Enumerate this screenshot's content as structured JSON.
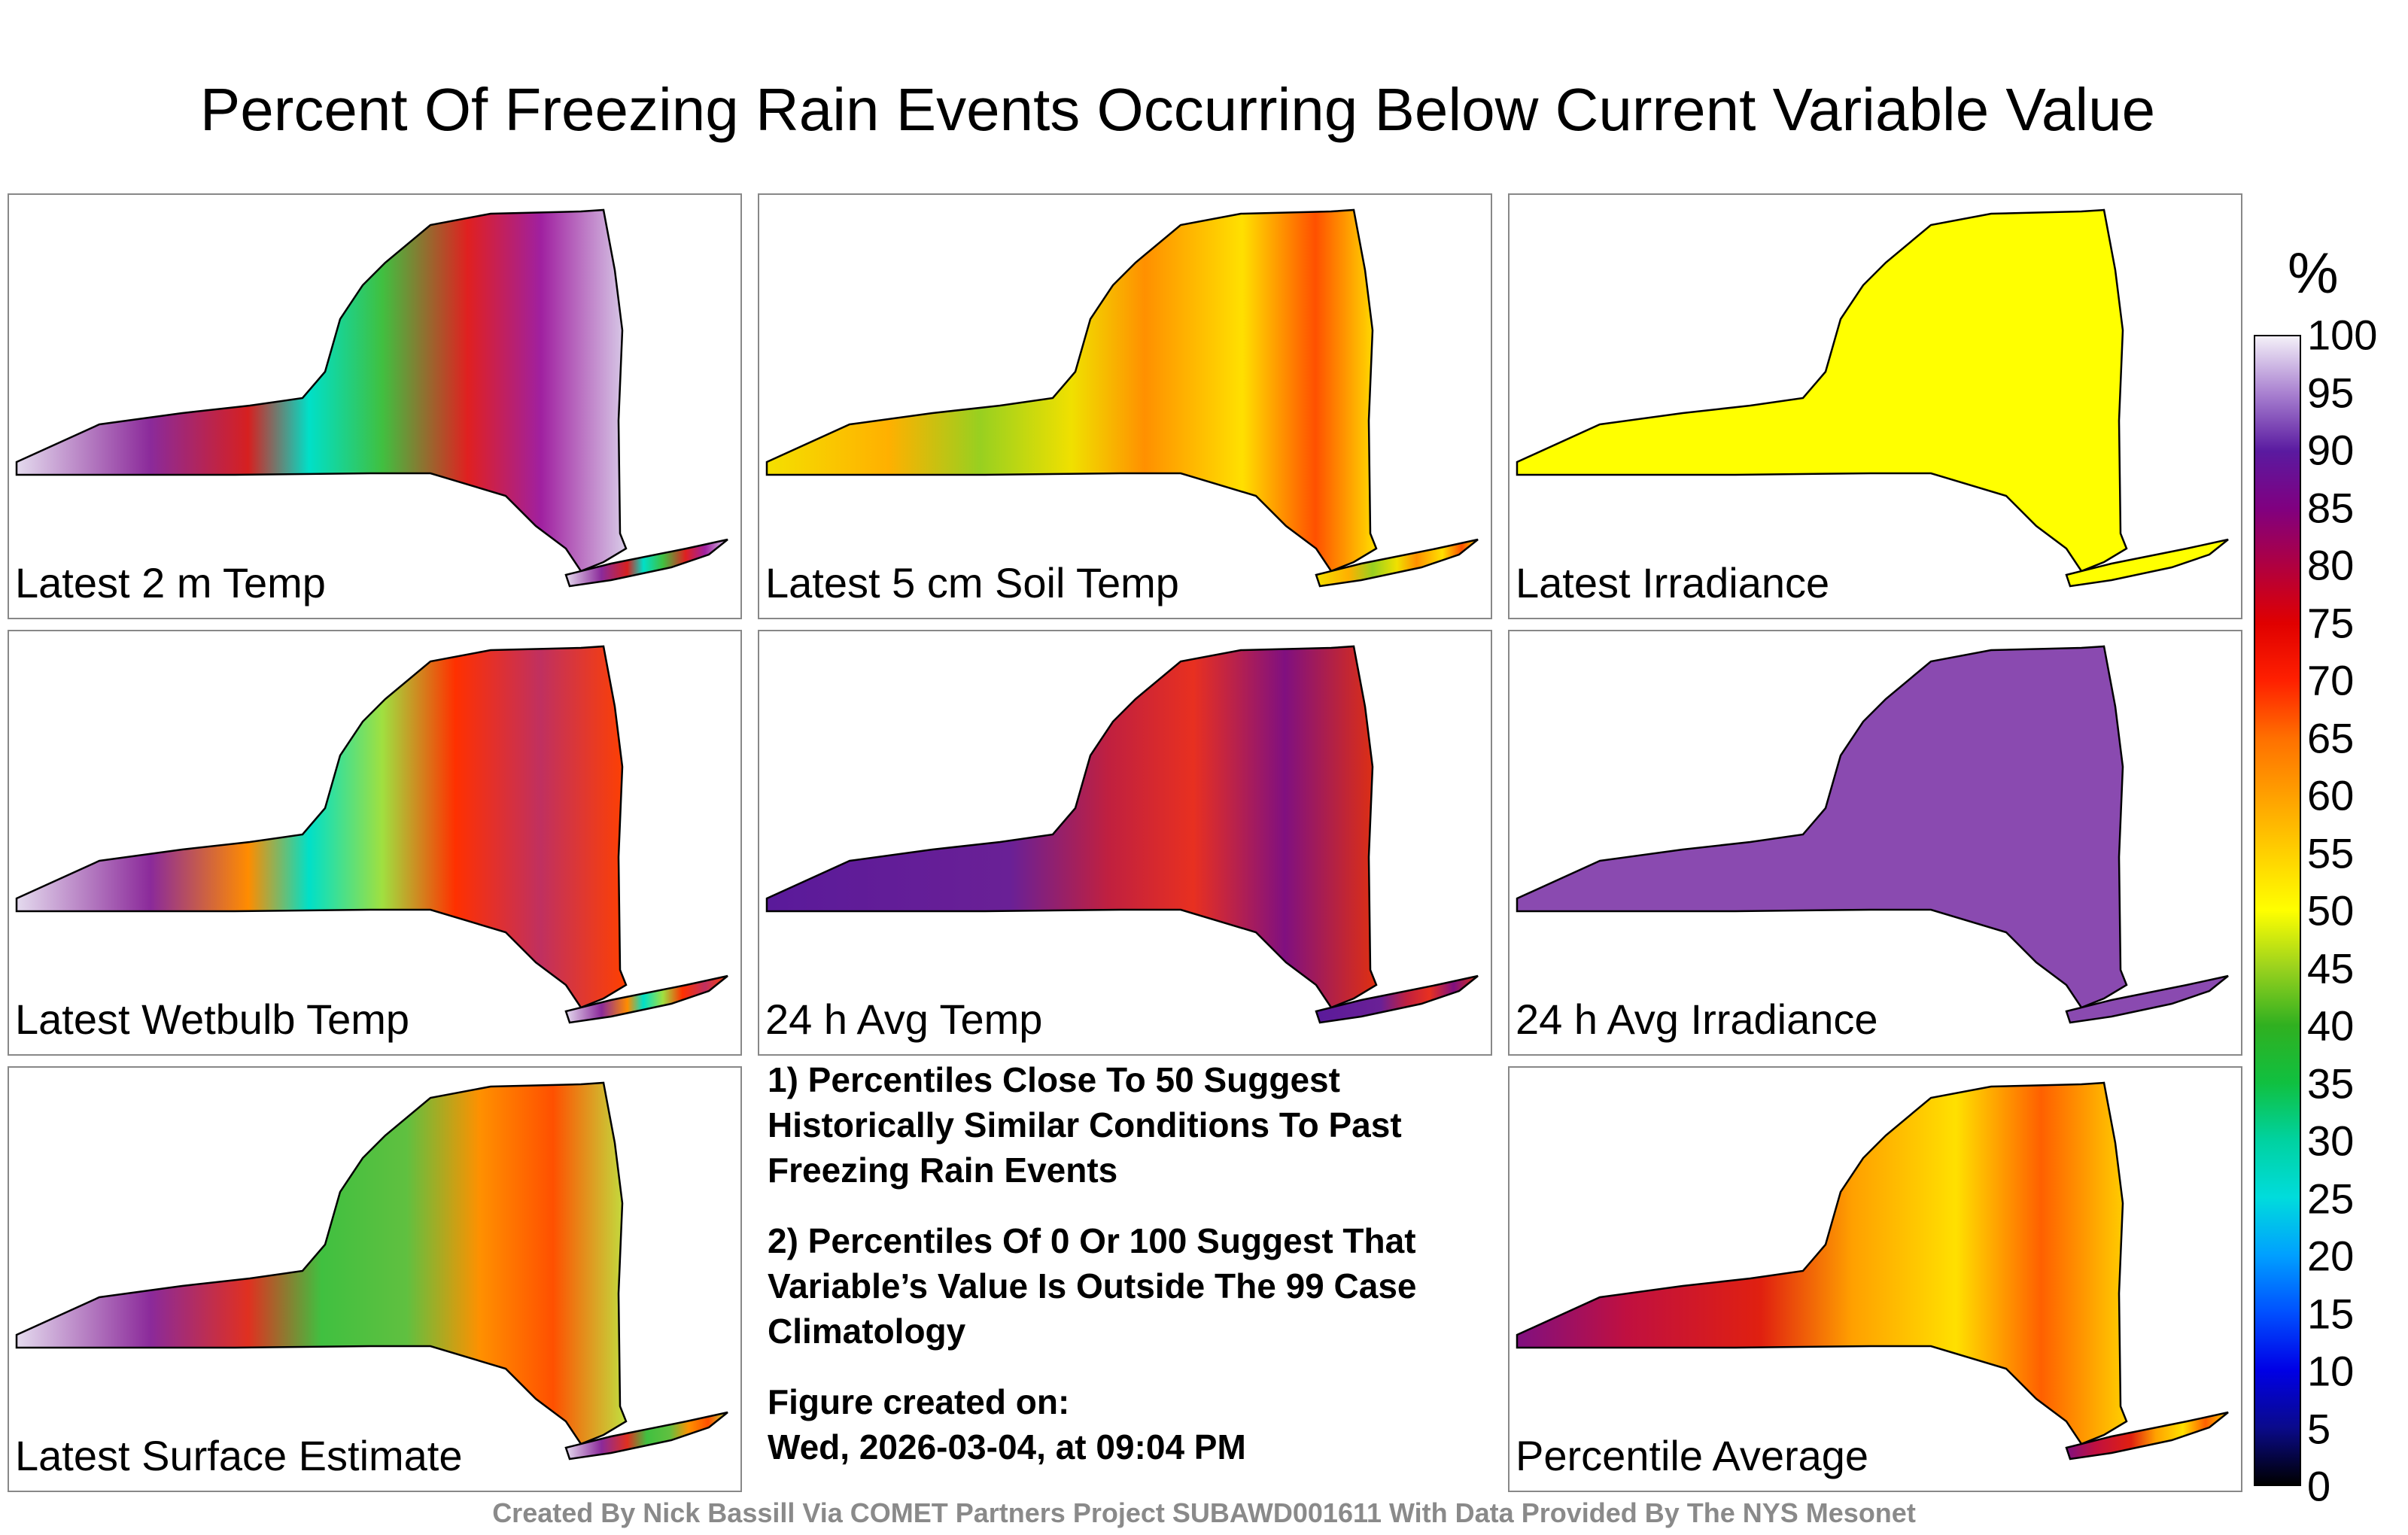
{
  "title": "Percent Of Freezing Rain Events Occurring Below Current Variable Value",
  "panels": [
    {
      "id": "p1",
      "label": "Latest 2 m Temp",
      "field": [
        [
          0,
          "#e4daee"
        ],
        [
          0.22,
          "#8b2a9a"
        ],
        [
          0.38,
          "#d62020"
        ],
        [
          0.48,
          "#00e0c8"
        ],
        [
          0.6,
          "#40c040"
        ],
        [
          0.74,
          "#e02020"
        ],
        [
          0.86,
          "#a020a0"
        ],
        [
          1,
          "#d8cce8"
        ]
      ]
    },
    {
      "id": "p2",
      "label": "Latest 5 cm Soil Temp",
      "field": [
        [
          0,
          "#f4e000"
        ],
        [
          0.2,
          "#ffb000"
        ],
        [
          0.35,
          "#98d020"
        ],
        [
          0.5,
          "#f0e000"
        ],
        [
          0.62,
          "#ff9000"
        ],
        [
          0.78,
          "#ffe000"
        ],
        [
          0.9,
          "#ff5000"
        ],
        [
          1,
          "#ffe000"
        ]
      ]
    },
    {
      "id": "p3",
      "label": "Latest Irradiance",
      "field": [
        [
          0,
          "#ffff00"
        ],
        [
          1,
          "#ffff00"
        ]
      ]
    },
    {
      "id": "p4",
      "label": "Latest Wetbulb Temp",
      "field": [
        [
          0,
          "#e4daee"
        ],
        [
          0.22,
          "#8b2a9a"
        ],
        [
          0.38,
          "#ff8c00"
        ],
        [
          0.48,
          "#00e0c8"
        ],
        [
          0.6,
          "#a0e040"
        ],
        [
          0.72,
          "#ff3000"
        ],
        [
          0.86,
          "#c03060"
        ],
        [
          1,
          "#ff4000"
        ]
      ]
    },
    {
      "id": "p5",
      "label": "24 h Avg Temp",
      "field": [
        [
          0,
          "#5a1a9a"
        ],
        [
          0.4,
          "#6a2096"
        ],
        [
          0.56,
          "#c02040"
        ],
        [
          0.7,
          "#e83020"
        ],
        [
          0.85,
          "#801080"
        ],
        [
          1,
          "#e03010"
        ]
      ]
    },
    {
      "id": "p6",
      "label": "24 h Avg Irradiance",
      "field": [
        [
          0,
          "#8a4ab0"
        ],
        [
          1,
          "#8a4ab0"
        ]
      ]
    },
    {
      "id": "p7",
      "label": "Latest Surface Estimate",
      "field": [
        [
          0,
          "#e4daee"
        ],
        [
          0.22,
          "#8b2a9a"
        ],
        [
          0.38,
          "#e03020"
        ],
        [
          0.5,
          "#40c040"
        ],
        [
          0.64,
          "#60c040"
        ],
        [
          0.76,
          "#ff9000"
        ],
        [
          0.88,
          "#ff5000"
        ],
        [
          1,
          "#c0e040"
        ]
      ]
    },
    {
      "id": "p8",
      "label": "Percentile Average",
      "field": [
        [
          0,
          "#801080"
        ],
        [
          0.18,
          "#c01040"
        ],
        [
          0.4,
          "#e02010"
        ],
        [
          0.55,
          "#ffa000"
        ],
        [
          0.72,
          "#ffe000"
        ],
        [
          0.86,
          "#ff6000"
        ],
        [
          1,
          "#ffd000"
        ]
      ]
    }
  ],
  "notes": [
    "1) Percentiles Close To 50 Suggest Historically Similar Conditions To Past Freezing Rain Events",
    "2) Percentiles Of 0 Or 100 Suggest That Variable’s Value Is Outside The 99 Case Climatology",
    "Figure created on:",
    "Wed, 2026-03-04, at 09:04 PM"
  ],
  "colorbar": {
    "unit": "%",
    "ticks": [
      "100",
      "95",
      "90",
      "85",
      "80",
      "75",
      "70",
      "65",
      "60",
      "55",
      "50",
      "45",
      "40",
      "35",
      "30",
      "25",
      "20",
      "15",
      "10",
      "5",
      "0"
    ]
  },
  "credit": "Created By Nick Bassill Via COMET Partners Project SUBAWD001611 With Data Provided By The NYS Mesonet"
}
